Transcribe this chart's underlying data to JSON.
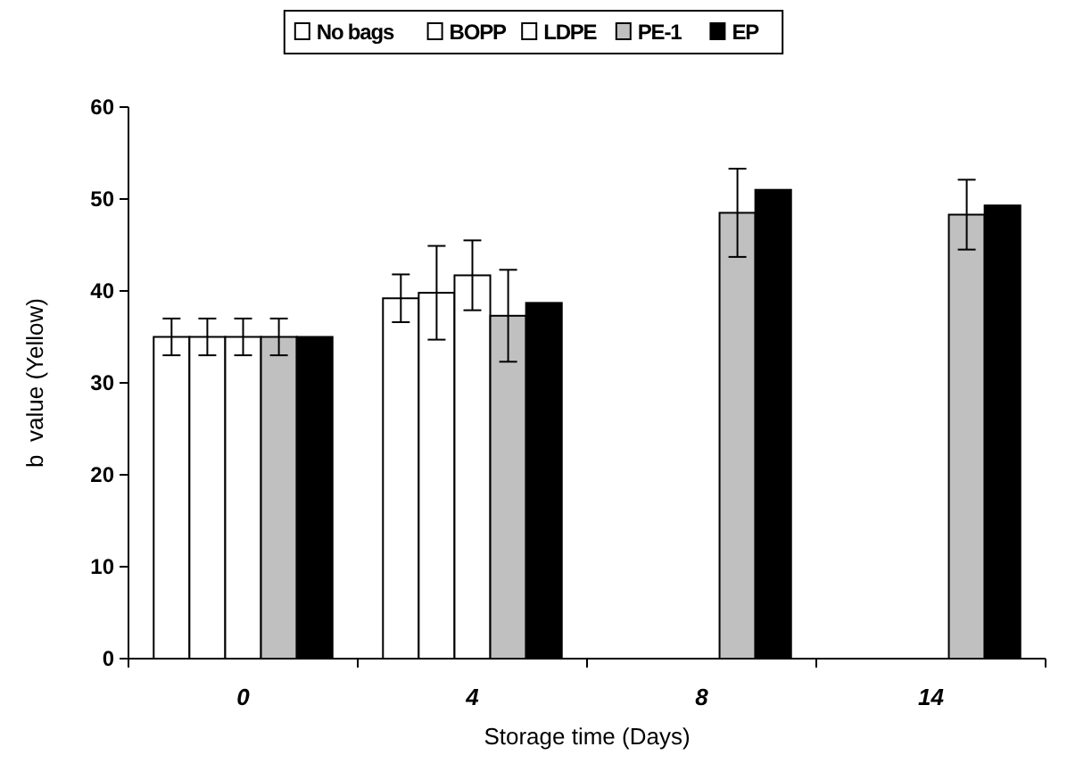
{
  "chart_data": {
    "type": "bar",
    "xlabel": "Storage time (Days)",
    "ylabel": "b  value (Yellow)",
    "categories": [
      "0",
      "4",
      "8",
      "14"
    ],
    "ylim": [
      0,
      60
    ],
    "yticks": [
      0,
      10,
      20,
      30,
      40,
      50,
      60
    ],
    "grid": false,
    "legend": "top",
    "series": [
      {
        "name": "No bags",
        "color": "#ffffff",
        "values": [
          35,
          39.2,
          null,
          null
        ],
        "errors": [
          2,
          2.6,
          null,
          null
        ]
      },
      {
        "name": "BOPP",
        "color": "#ffffff",
        "values": [
          35,
          39.8,
          null,
          null
        ],
        "errors": [
          2,
          5.1,
          null,
          null
        ]
      },
      {
        "name": "LDPE",
        "color": "#ffffff",
        "values": [
          35,
          41.7,
          null,
          null
        ],
        "errors": [
          2,
          3.8,
          null,
          null
        ]
      },
      {
        "name": "PE-1",
        "color": "#c0c0c0",
        "values": [
          35,
          37.3,
          48.5,
          48.3
        ],
        "errors": [
          2,
          5,
          4.8,
          3.8
        ]
      },
      {
        "name": "EP",
        "color": "#000000",
        "values": [
          35,
          38.7,
          51,
          49.3
        ]
      }
    ]
  }
}
